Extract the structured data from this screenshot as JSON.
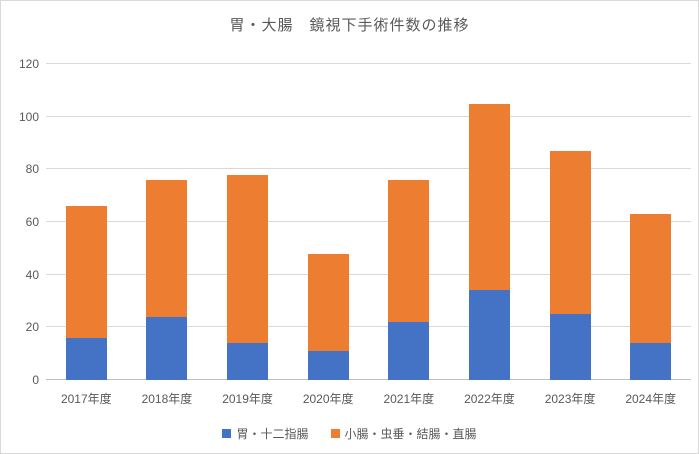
{
  "title": "胃・大腸　鏡視下手術件数の推移",
  "chart_data": {
    "type": "bar",
    "stacked": true,
    "title": "胃・大腸　鏡視下手術件数の推移",
    "categories": [
      "2017年度",
      "2018年度",
      "2019年度",
      "2020年度",
      "2021年度",
      "2022年度",
      "2023年度",
      "2024年度"
    ],
    "series": [
      {
        "name": "胃・十二指腸",
        "color": "#4472C4",
        "values": [
          16,
          24,
          14,
          11,
          22,
          34,
          25,
          14
        ]
      },
      {
        "name": "小腸・虫垂・結腸・直腸",
        "color": "#ED7D31",
        "values": [
          50,
          52,
          64,
          37,
          54,
          71,
          62,
          49
        ]
      }
    ],
    "stacked_totals": [
      66,
      76,
      78,
      48,
      76,
      105,
      87,
      63
    ],
    "xlabel": "",
    "ylabel": "",
    "ylim": [
      0,
      120
    ],
    "yticks": [
      0,
      20,
      40,
      60,
      80,
      100,
      120
    ],
    "grid": true,
    "legend_position": "bottom",
    "colors": {
      "gridline": "#D9D9D9",
      "axis_line": "#BFBFBF",
      "text": "#595959",
      "background": "#FFFFFF"
    }
  }
}
